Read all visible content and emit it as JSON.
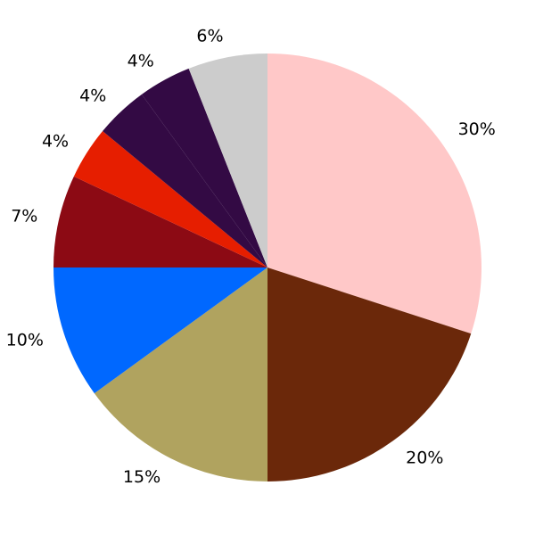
{
  "chart_data": {
    "type": "pie",
    "title": "",
    "start": "top",
    "direction": "clockwise",
    "slices": [
      {
        "label": "30%",
        "value": 30,
        "color": "#ffc8c8"
      },
      {
        "label": "20%",
        "value": 20,
        "color": "#6b280a"
      },
      {
        "label": "15%",
        "value": 15,
        "color": "#b0a35f"
      },
      {
        "label": "10%",
        "value": 10,
        "color": "#0068ff"
      },
      {
        "label": "7%",
        "value": 7,
        "color": "#8c0a14"
      },
      {
        "label": "4%",
        "value": 4,
        "color": "#e61e00"
      },
      {
        "label": "4%",
        "value": 4,
        "color": "#330a44"
      },
      {
        "label": "4%",
        "value": 4,
        "color": "#330a44"
      },
      {
        "label": "6%",
        "value": 6,
        "color": "#cccccc"
      }
    ]
  }
}
